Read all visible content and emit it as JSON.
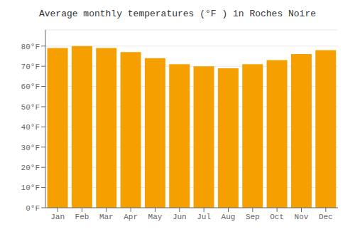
{
  "chart_data": {
    "type": "bar",
    "title": "Average monthly temperatures (°F ) in Roches Noire",
    "categories": [
      "Jan",
      "Feb",
      "Mar",
      "Apr",
      "May",
      "Jun",
      "Jul",
      "Aug",
      "Sep",
      "Oct",
      "Nov",
      "Dec"
    ],
    "values": [
      79,
      80,
      79,
      77,
      74,
      71,
      70,
      69,
      71,
      73,
      76,
      78
    ],
    "color": "#F5A000",
    "ylim": [
      0,
      88
    ],
    "yticks": [
      {
        "value": 0,
        "label": "0°F"
      },
      {
        "value": 10,
        "label": "10°F"
      },
      {
        "value": 20,
        "label": "20°F"
      },
      {
        "value": 30,
        "label": "30°F"
      },
      {
        "value": 40,
        "label": "40°F"
      },
      {
        "value": 50,
        "label": "50°F"
      },
      {
        "value": 60,
        "label": "60°F"
      },
      {
        "value": 70,
        "label": "70°F"
      },
      {
        "value": 80,
        "label": "80°F"
      }
    ],
    "grid": true
  }
}
